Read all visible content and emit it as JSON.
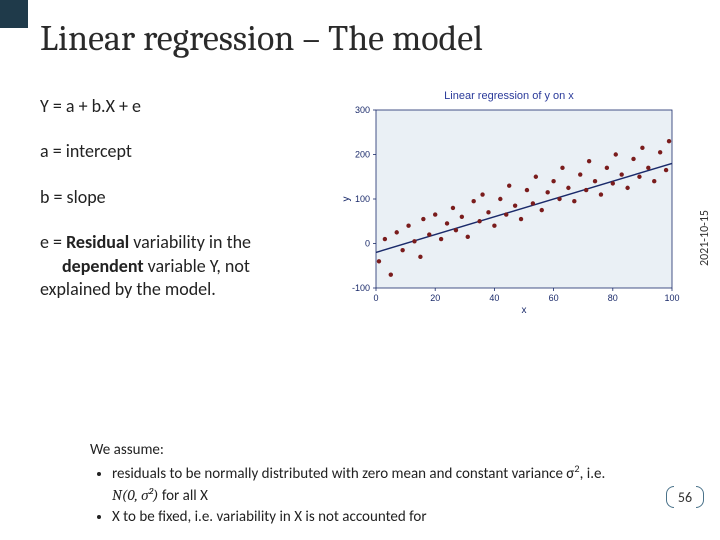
{
  "title": "Linear regression – The model",
  "date_label": "2021-10-15",
  "page_number": "56",
  "definitions": {
    "equation": "Y = a + b.X + e",
    "intercept": "a = intercept",
    "slope": "b = slope",
    "residual_lead": "e = ",
    "residual_bold1": "Residual",
    "residual_mid": " variability in the ",
    "residual_bold2": "dependent",
    "residual_tail": "  variable Y,  not explained by the model."
  },
  "chart": {
    "title": "Linear regression of y on x",
    "type": "scatter",
    "xlabel": "x",
    "ylabel": "y",
    "xlim": [
      0,
      100
    ],
    "ylim": [
      -100,
      300
    ],
    "xtick_step": 20,
    "ytick_step": 100,
    "plot_bg": "#eaf0f5",
    "frame_color": "#1a2a6a",
    "point_color": "#7a1c1c",
    "point_radius": 2.2,
    "line_color": "#1a2a6a",
    "line_width": 1.4,
    "line_start": {
      "x": 0,
      "y": -20
    },
    "line_end": {
      "x": 100,
      "y": 180
    },
    "points": [
      {
        "x": 1,
        "y": -40
      },
      {
        "x": 3,
        "y": 10
      },
      {
        "x": 5,
        "y": -70
      },
      {
        "x": 7,
        "y": 25
      },
      {
        "x": 9,
        "y": -15
      },
      {
        "x": 11,
        "y": 40
      },
      {
        "x": 13,
        "y": 5
      },
      {
        "x": 15,
        "y": -30
      },
      {
        "x": 16,
        "y": 55
      },
      {
        "x": 18,
        "y": 20
      },
      {
        "x": 20,
        "y": 65
      },
      {
        "x": 22,
        "y": 10
      },
      {
        "x": 24,
        "y": 45
      },
      {
        "x": 26,
        "y": 80
      },
      {
        "x": 27,
        "y": 30
      },
      {
        "x": 29,
        "y": 60
      },
      {
        "x": 31,
        "y": 15
      },
      {
        "x": 33,
        "y": 95
      },
      {
        "x": 35,
        "y": 50
      },
      {
        "x": 36,
        "y": 110
      },
      {
        "x": 38,
        "y": 70
      },
      {
        "x": 40,
        "y": 40
      },
      {
        "x": 42,
        "y": 100
      },
      {
        "x": 44,
        "y": 65
      },
      {
        "x": 45,
        "y": 130
      },
      {
        "x": 47,
        "y": 85
      },
      {
        "x": 49,
        "y": 55
      },
      {
        "x": 51,
        "y": 120
      },
      {
        "x": 53,
        "y": 90
      },
      {
        "x": 54,
        "y": 150
      },
      {
        "x": 56,
        "y": 75
      },
      {
        "x": 58,
        "y": 115
      },
      {
        "x": 60,
        "y": 140
      },
      {
        "x": 62,
        "y": 100
      },
      {
        "x": 63,
        "y": 170
      },
      {
        "x": 65,
        "y": 125
      },
      {
        "x": 67,
        "y": 95
      },
      {
        "x": 69,
        "y": 155
      },
      {
        "x": 71,
        "y": 120
      },
      {
        "x": 72,
        "y": 185
      },
      {
        "x": 74,
        "y": 140
      },
      {
        "x": 76,
        "y": 110
      },
      {
        "x": 78,
        "y": 170
      },
      {
        "x": 80,
        "y": 135
      },
      {
        "x": 81,
        "y": 200
      },
      {
        "x": 83,
        "y": 155
      },
      {
        "x": 85,
        "y": 125
      },
      {
        "x": 87,
        "y": 190
      },
      {
        "x": 89,
        "y": 150
      },
      {
        "x": 90,
        "y": 215
      },
      {
        "x": 92,
        "y": 170
      },
      {
        "x": 94,
        "y": 140
      },
      {
        "x": 96,
        "y": 205
      },
      {
        "x": 98,
        "y": 165
      },
      {
        "x": 99,
        "y": 230
      }
    ],
    "label_fontsize": 10,
    "tick_fontsize": 9
  },
  "assumptions": {
    "heading": "We assume:",
    "item1_a": "residuals to be normally distributed with zero mean and constant variance σ",
    "item1_b": ", i.e. ",
    "item1_dist": "N(0, σ²)",
    "item1_c": " for all X",
    "item2": "X to be fixed, i.e. variability in X is not accounted for"
  }
}
